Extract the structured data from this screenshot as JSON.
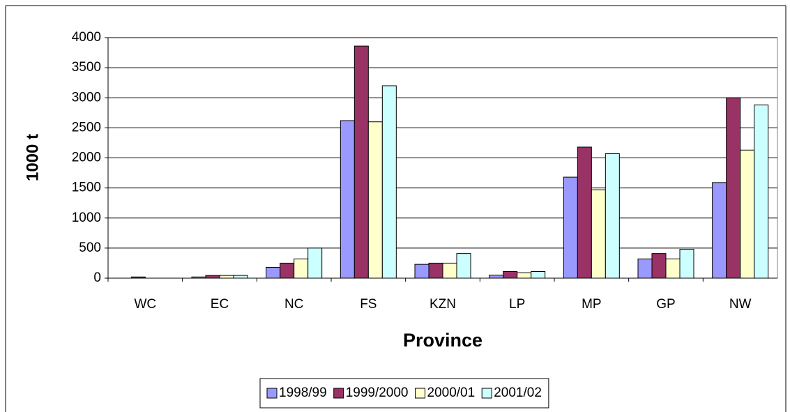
{
  "chart_data": {
    "type": "bar",
    "x_label": "Province",
    "y_label": "1000 t",
    "categories": [
      "WC",
      "EC",
      "NC",
      "FS",
      "KZN",
      "LP",
      "MP",
      "GP",
      "NW"
    ],
    "series": [
      {
        "name": "1998/99",
        "color": "#9999ff",
        "values": [
          0,
          20,
          180,
          2620,
          230,
          50,
          1680,
          320,
          1590
        ]
      },
      {
        "name": "1999/2000",
        "color": "#993366",
        "values": [
          20,
          45,
          250,
          3860,
          250,
          110,
          2180,
          410,
          3000
        ]
      },
      {
        "name": "2000/01",
        "color": "#ffffcc",
        "values": [
          0,
          45,
          320,
          2600,
          250,
          90,
          1470,
          320,
          2130
        ]
      },
      {
        "name": "2001/02",
        "color": "#ccffff",
        "values": [
          0,
          45,
          500,
          3200,
          410,
          110,
          2070,
          480,
          2880
        ]
      }
    ],
    "ylim": [
      0,
      4000
    ],
    "yticks": [
      0,
      500,
      1000,
      1500,
      2000,
      2500,
      3000,
      3500,
      4000
    ],
    "grid": true,
    "legend": "bottom"
  }
}
